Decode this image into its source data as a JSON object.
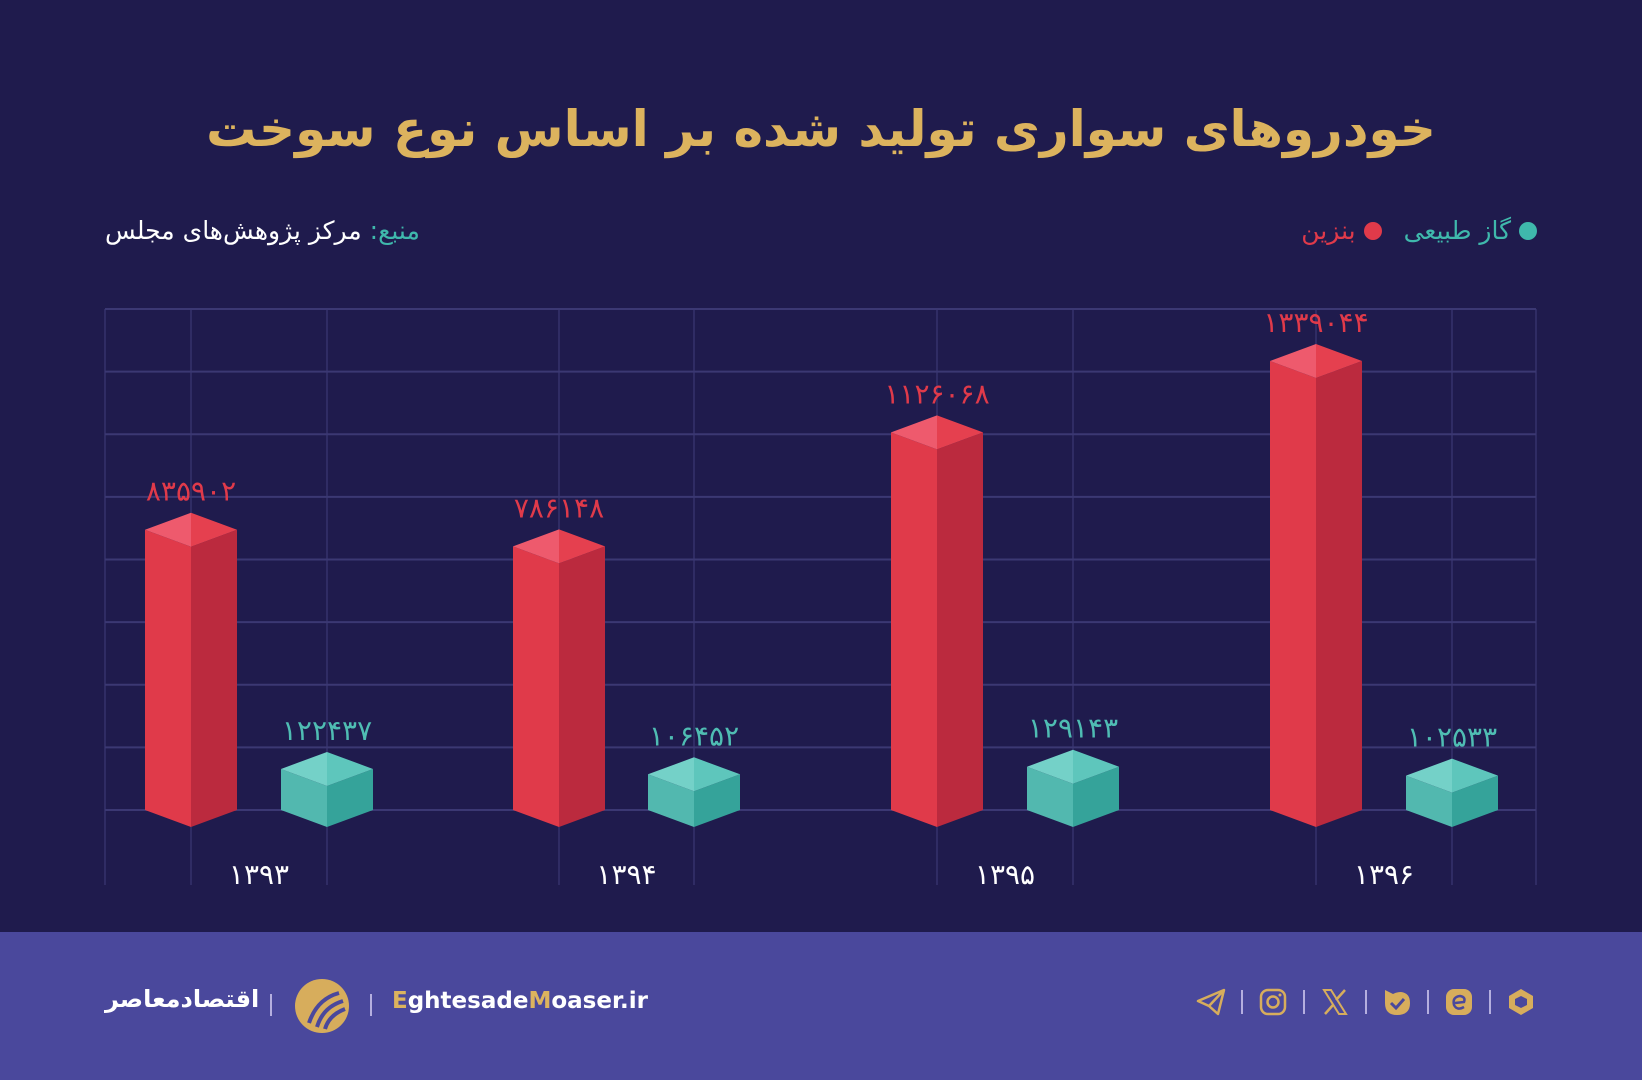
{
  "header": {
    "title": "خودروهای سواری تولید شده بر اساس نوع سوخت"
  },
  "legend": {
    "gas": "گاز طبیعی",
    "petrol": "بنزین"
  },
  "source": {
    "label": "منبع:",
    "value": "مرکز پژوهش‌های مجلس"
  },
  "colors": {
    "background": "#1f1b4d",
    "petrol": "#e03a4a",
    "gas": "#4fbdb3",
    "title": "#dcb35e",
    "footer": "#4a489c"
  },
  "chart_data": {
    "type": "bar",
    "title": "خودروهای سواری تولید شده بر اساس نوع سوخت",
    "categories": [
      "۱۳۹۳",
      "۱۳۹۴",
      "۱۳۹۵",
      "۱۳۹۶"
    ],
    "series": [
      {
        "name": "بنزین",
        "values": [
          835902,
          786148,
          1126068,
          1339044
        ],
        "labels": [
          "۸۳۵۹۰۲",
          "۷۸۶۱۴۸",
          "۱۱۲۶۰۶۸",
          "۱۳۳۹۰۴۴"
        ]
      },
      {
        "name": "گاز طبیعی",
        "values": [
          122437,
          106452,
          129143,
          102533
        ],
        "labels": [
          "۱۲۲۴۳۷",
          "۱۰۶۴۵۲",
          "۱۲۹۱۴۳",
          "۱۰۲۵۳۳"
        ]
      }
    ],
    "ylim": [
      0,
      1500000
    ],
    "grid": true,
    "legend": "top-right",
    "style": "3d-prism"
  },
  "footer": {
    "brand": "اقتصادمعاصر",
    "site_e": "E",
    "site_1": "ghtesade",
    "site_m": "M",
    "site_2": "oaser.ir",
    "icons": [
      "telegram-icon",
      "instagram-icon",
      "x-icon",
      "bale-icon",
      "eitaa-icon",
      "rubika-icon"
    ]
  }
}
